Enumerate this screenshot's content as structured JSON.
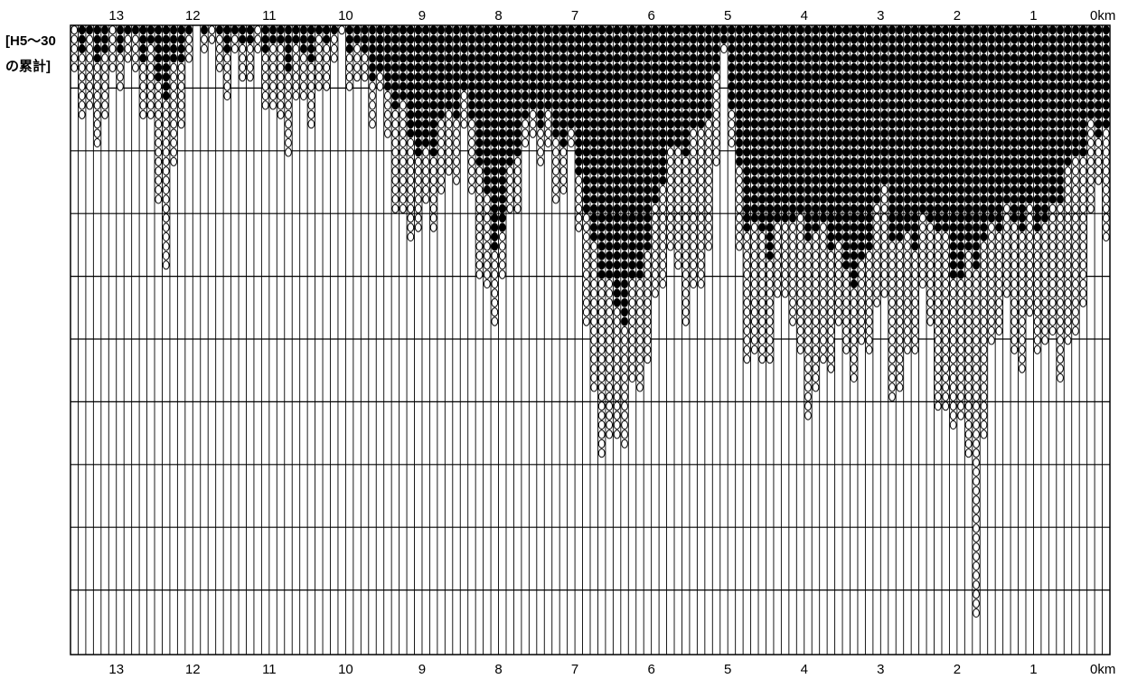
{
  "label": {
    "line1": "[H5～30",
    "line2": "の累計]"
  },
  "chart_data": {
    "type": "heatmap",
    "cell_value_legend": {
      "filled_circle": "dense",
      "open_circle": "sparse",
      "empty": "none"
    },
    "x_axis": {
      "unit": "km",
      "direction": "decreasing-left-to-right",
      "xlim": [
        13.6,
        0
      ],
      "tick_labels_top": [
        "13",
        "12",
        "11",
        "10",
        "9",
        "8",
        "7",
        "6",
        "5",
        "4",
        "3",
        "2",
        "1",
        "0km"
      ],
      "tick_labels_bottom": [
        "13",
        "12",
        "11",
        "10",
        "9",
        "8",
        "7",
        "6",
        "5",
        "4",
        "3",
        "2",
        "1",
        "0km"
      ],
      "tick_values": [
        13,
        12,
        11,
        10,
        9,
        8,
        7,
        6,
        5,
        4,
        3,
        2,
        1,
        0
      ]
    },
    "grid": true,
    "rows": 10,
    "columns": 136,
    "profile_km": [
      [
        13.6,
        0.6,
        0.0
      ],
      [
        13.3,
        1.6,
        0.3
      ],
      [
        13.0,
        1.0,
        0.3
      ],
      [
        12.8,
        1.0,
        0.4
      ],
      [
        12.6,
        1.2,
        0.3
      ],
      [
        12.35,
        3.5,
        1.0
      ],
      [
        12.1,
        1.0,
        0.4
      ],
      [
        11.9,
        0.0,
        0.0
      ],
      [
        11.7,
        0.6,
        0.0
      ],
      [
        11.4,
        0.6,
        0.2
      ],
      [
        11.2,
        1.0,
        0.3
      ],
      [
        10.8,
        1.8,
        0.4
      ],
      [
        10.6,
        1.0,
        0.3
      ],
      [
        10.35,
        1.5,
        0.5
      ],
      [
        10.1,
        0.5,
        0.2
      ],
      [
        9.8,
        0.8,
        0.3
      ],
      [
        9.5,
        1.4,
        1.0
      ],
      [
        9.3,
        3.6,
        1.5
      ],
      [
        9.0,
        3.0,
        2.0
      ],
      [
        8.7,
        2.6,
        1.5
      ],
      [
        8.4,
        2.2,
        1.3
      ],
      [
        8.2,
        4.5,
        2.5
      ],
      [
        8.0,
        4.2,
        3.6
      ],
      [
        7.8,
        2.8,
        2.0
      ],
      [
        7.5,
        2.0,
        1.5
      ],
      [
        7.25,
        2.5,
        1.6
      ],
      [
        7.0,
        2.0,
        1.7
      ],
      [
        6.8,
        6.0,
        3.5
      ],
      [
        6.6,
        7.1,
        4.2
      ],
      [
        6.4,
        6.5,
        4.6
      ],
      [
        6.2,
        5.6,
        4.0
      ],
      [
        6.0,
        5.2,
        3.3
      ],
      [
        5.8,
        3.8,
        2.3
      ],
      [
        5.6,
        4.4,
        2.0
      ],
      [
        5.4,
        4.2,
        1.6
      ],
      [
        5.15,
        2.6,
        1.0
      ],
      [
        5.05,
        0.3,
        0.2
      ],
      [
        4.8,
        5.0,
        3.2
      ],
      [
        4.6,
        5.5,
        3.2
      ],
      [
        4.4,
        4.6,
        3.4
      ],
      [
        4.2,
        4.2,
        3.0
      ],
      [
        4.0,
        6.3,
        3.4
      ],
      [
        3.8,
        5.8,
        3.3
      ],
      [
        3.6,
        4.6,
        3.2
      ],
      [
        3.4,
        5.3,
        4.0
      ],
      [
        3.2,
        5.8,
        4.0
      ],
      [
        3.0,
        4.2,
        2.6
      ],
      [
        2.8,
        6.0,
        3.3
      ],
      [
        2.6,
        5.0,
        3.3
      ],
      [
        2.4,
        4.4,
        3.2
      ],
      [
        2.2,
        6.8,
        3.3
      ],
      [
        2.05,
        6.3,
        4.0
      ],
      [
        1.9,
        6.0,
        3.8
      ],
      [
        1.75,
        8.9,
        3.5
      ],
      [
        1.6,
        5.6,
        3.4
      ],
      [
        1.4,
        4.6,
        3.2
      ],
      [
        1.2,
        5.6,
        3.2
      ],
      [
        1.0,
        4.6,
        2.9
      ],
      [
        0.8,
        5.0,
        3.1
      ],
      [
        0.6,
        5.7,
        2.6
      ],
      [
        0.45,
        5.3,
        2.3
      ],
      [
        0.3,
        3.8,
        1.8
      ],
      [
        0.15,
        2.3,
        1.6
      ],
      [
        0.0,
        3.4,
        1.2
      ]
    ]
  }
}
